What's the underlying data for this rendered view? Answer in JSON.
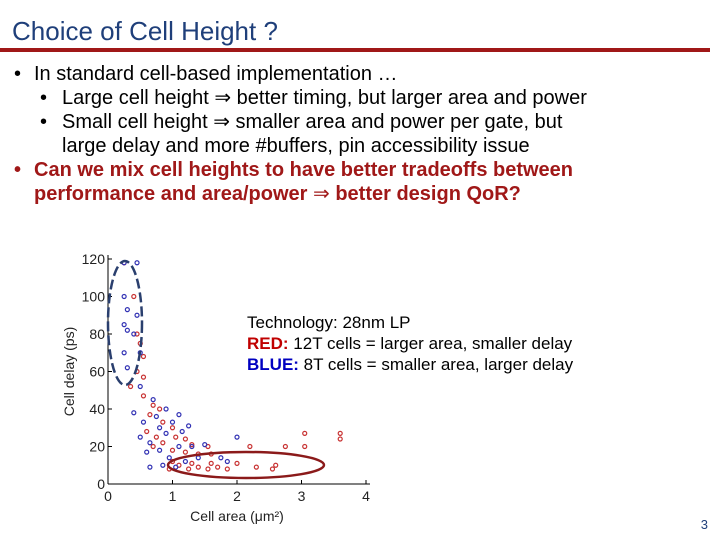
{
  "slide": {
    "title": "Choice of Cell Height ?",
    "page_number": "3"
  },
  "bullets": {
    "b1": "In standard cell-based implementation …",
    "b1_1_pre": "Large cell height",
    "b1_1_post": "better timing, but larger area and power",
    "b1_2_pre": "Small cell height",
    "b1_2_post": "smaller area and power per gate, but",
    "b1_2_line2": "large delay and more #buffers, pin accessibility issue",
    "b2_line1": "Can we mix cell heights to have better tradeoffs between",
    "b2_line2_pre": "performance and area/power",
    "b2_line2_post": "better design QoR?",
    "arrow": "⇒",
    "bullet_char": "•"
  },
  "notes": {
    "technology": "Technology: 28nm LP",
    "red_label": "RED:",
    "red_text": " 12T cells = larger area, smaller delay",
    "blue_label": "BLUE:",
    "blue_text": " 8T cells = smaller area, larger delay"
  },
  "colors": {
    "red_series": "#c83232",
    "blue_series": "#3232b4",
    "ellipse_blue": "#2a3f6e",
    "ellipse_red": "#8b1a1a",
    "title_blue": "#1f3f7a",
    "rule_red": "#a01818"
  },
  "chart_data": {
    "type": "scatter",
    "xlabel": "Cell area (μm²)",
    "ylabel": "Cell delay (ps)",
    "xlim": [
      0,
      4
    ],
    "ylim": [
      0,
      120
    ],
    "xticks": [
      "0",
      "1",
      "2",
      "3",
      "4"
    ],
    "yticks": [
      "0",
      "20",
      "40",
      "60",
      "80",
      "100",
      "120"
    ],
    "grid": false,
    "series": [
      {
        "color": "red",
        "points": [
          [
            0.25,
            118
          ],
          [
            0.4,
            100
          ],
          [
            0.45,
            80
          ],
          [
            0.5,
            75
          ],
          [
            0.55,
            68
          ],
          [
            0.45,
            60
          ],
          [
            0.55,
            57
          ],
          [
            0.35,
            52
          ],
          [
            0.55,
            47
          ],
          [
            0.7,
            42
          ],
          [
            0.8,
            40
          ],
          [
            0.65,
            37
          ],
          [
            0.85,
            33
          ],
          [
            1.0,
            30
          ],
          [
            0.6,
            28
          ],
          [
            0.75,
            25
          ],
          [
            1.05,
            25
          ],
          [
            1.2,
            24
          ],
          [
            0.85,
            22
          ],
          [
            1.3,
            21
          ],
          [
            0.7,
            20
          ],
          [
            1.55,
            20
          ],
          [
            1.0,
            18
          ],
          [
            1.2,
            17
          ],
          [
            1.4,
            16
          ],
          [
            1.6,
            16
          ],
          [
            1.0,
            12
          ],
          [
            1.3,
            11
          ],
          [
            1.6,
            11
          ],
          [
            2.0,
            11
          ],
          [
            1.1,
            10
          ],
          [
            1.4,
            9
          ],
          [
            1.7,
            9
          ],
          [
            2.3,
            9
          ],
          [
            2.6,
            10
          ],
          [
            0.95,
            8
          ],
          [
            1.25,
            8
          ],
          [
            1.55,
            8
          ],
          [
            1.85,
            8
          ],
          [
            2.55,
            8
          ],
          [
            2.2,
            20
          ],
          [
            2.75,
            20
          ],
          [
            3.05,
            20
          ],
          [
            3.05,
            27
          ],
          [
            3.6,
            24
          ],
          [
            3.6,
            27
          ]
        ]
      },
      {
        "color": "blue",
        "points": [
          [
            0.25,
            118
          ],
          [
            0.45,
            118
          ],
          [
            0.25,
            100
          ],
          [
            0.3,
            93
          ],
          [
            0.45,
            90
          ],
          [
            0.25,
            85
          ],
          [
            0.3,
            82
          ],
          [
            0.4,
            80
          ],
          [
            0.25,
            70
          ],
          [
            0.5,
            70
          ],
          [
            0.3,
            62
          ],
          [
            0.5,
            52
          ],
          [
            0.7,
            45
          ],
          [
            0.9,
            40
          ],
          [
            0.4,
            38
          ],
          [
            0.75,
            36
          ],
          [
            1.1,
            37
          ],
          [
            0.55,
            33
          ],
          [
            1.0,
            33
          ],
          [
            0.8,
            30
          ],
          [
            1.25,
            31
          ],
          [
            0.5,
            25
          ],
          [
            0.9,
            27
          ],
          [
            1.15,
            28
          ],
          [
            0.65,
            22
          ],
          [
            1.1,
            20
          ],
          [
            1.5,
            21
          ],
          [
            0.8,
            18
          ],
          [
            1.3,
            20
          ],
          [
            0.95,
            14
          ],
          [
            1.4,
            14
          ],
          [
            1.75,
            14
          ],
          [
            0.6,
            17
          ],
          [
            2.0,
            25
          ],
          [
            1.2,
            12
          ],
          [
            0.65,
            9
          ],
          [
            0.85,
            10
          ],
          [
            1.05,
            9
          ],
          [
            1.85,
            12
          ]
        ]
      }
    ]
  }
}
